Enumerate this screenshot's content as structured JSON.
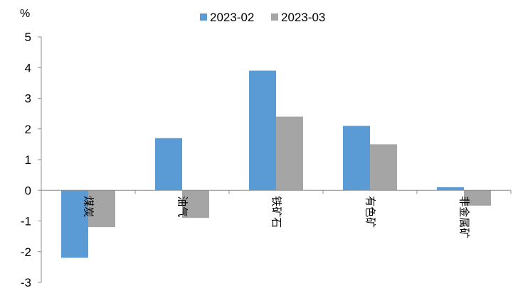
{
  "chart_data": {
    "type": "bar",
    "title": "",
    "ylabel": "%",
    "xlabel": "",
    "categories": [
      "煤炭",
      "油气",
      "铁矿石",
      "有色矿",
      "非金属矿"
    ],
    "series": [
      {
        "name": "2023-02",
        "color": "#5b9bd5",
        "values": [
          -2.2,
          1.7,
          3.9,
          2.1,
          0.1
        ]
      },
      {
        "name": "2023-03",
        "color": "#a5a5a5",
        "values": [
          -1.2,
          -0.9,
          2.4,
          1.5,
          -0.5
        ]
      }
    ],
    "ylim": [
      -3,
      5
    ],
    "yticks": [
      -3,
      -2,
      -1,
      0,
      1,
      2,
      3,
      4,
      5
    ],
    "grid": false,
    "legend_position": "top-center"
  }
}
